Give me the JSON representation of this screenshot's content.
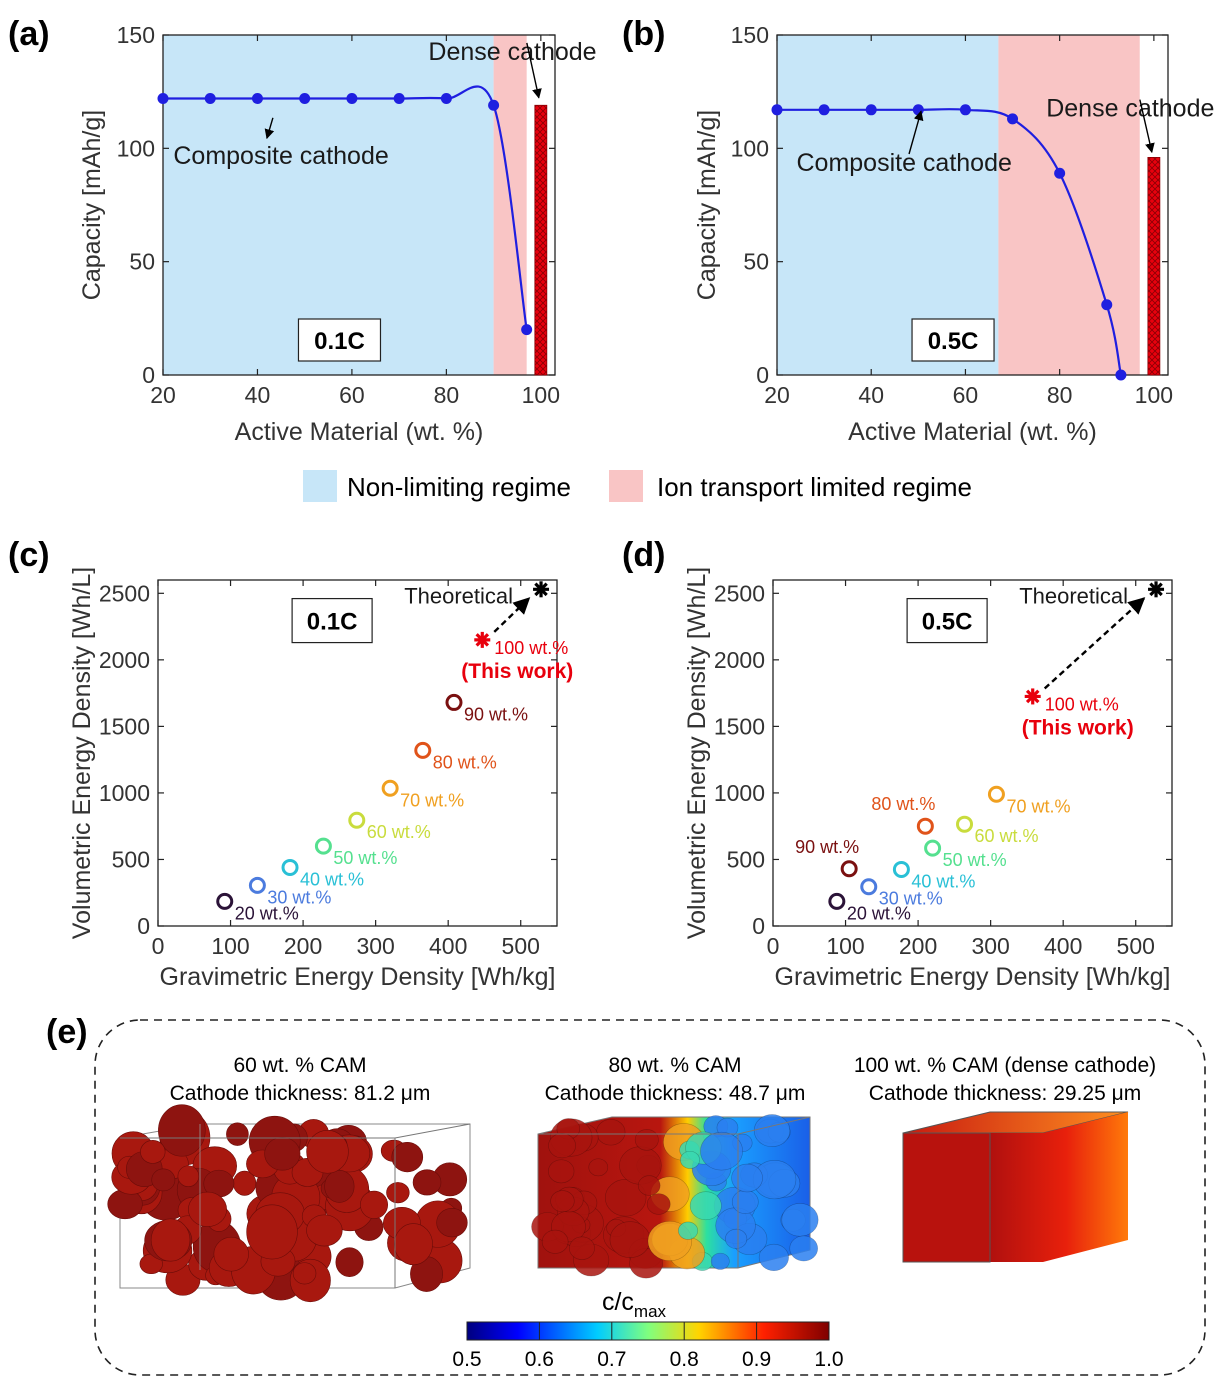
{
  "colors": {
    "blue_region": "#c7e6f8",
    "red_region": "#f9c5c5",
    "curve": "#1f1fe0",
    "bar": "#e8000d",
    "star_red": "#e8000d",
    "star_black": "#000000",
    "arrow": "#000000"
  },
  "legend": {
    "items": [
      {
        "label": "Non-limiting regime",
        "color": "#c7e6f8"
      },
      {
        "label": "Ion transport limited regime",
        "color": "#f9c5c5"
      }
    ]
  },
  "chart_data": [
    {
      "panel": "(a)",
      "type": "line",
      "xlabel": "Active Material (wt. %)",
      "ylabel": "Capacity [mAh/g]",
      "xlim": [
        20,
        103
      ],
      "ylim": [
        0,
        150
      ],
      "xticks": [
        20,
        40,
        60,
        80,
        100
      ],
      "yticks": [
        0,
        50,
        100,
        150
      ],
      "rate": "0.1C",
      "regions": [
        {
          "label": "Non-limiting regime",
          "from": 20,
          "to": 90
        },
        {
          "label": "Ion transport limited regime",
          "from": 90,
          "to": 97
        }
      ],
      "series": [
        {
          "points": [
            [
              20,
              122
            ],
            [
              30,
              122
            ],
            [
              40,
              122
            ],
            [
              50,
              122
            ],
            [
              60,
              122
            ],
            [
              70,
              122
            ],
            [
              80,
              122
            ],
            [
              90,
              119
            ],
            [
              97,
              20
            ]
          ]
        }
      ],
      "bar": {
        "x": 100,
        "value": 119
      },
      "annotations": [
        {
          "text": "Composite cathode",
          "tx": 45,
          "ty": 93,
          "ax": 42,
          "ay": 117
        },
        {
          "text": "Dense cathode",
          "tx": 94,
          "ty": 139,
          "ax": 100,
          "ay": 121
        }
      ]
    },
    {
      "panel": "(b)",
      "type": "line",
      "xlabel": "Active Material (wt. %)",
      "ylabel": "Capacity [mAh/g]",
      "xlim": [
        20,
        103
      ],
      "ylim": [
        0,
        150
      ],
      "xticks": [
        20,
        40,
        60,
        80,
        100
      ],
      "yticks": [
        0,
        50,
        100,
        150
      ],
      "rate": "0.5C",
      "regions": [
        {
          "label": "Non-limiting regime",
          "from": 20,
          "to": 67
        },
        {
          "label": "Ion transport limited regime",
          "from": 67,
          "to": 97
        }
      ],
      "series": [
        {
          "points": [
            [
              20,
              117
            ],
            [
              30,
              117
            ],
            [
              40,
              117
            ],
            [
              50,
              117
            ],
            [
              60,
              117
            ],
            [
              70,
              113
            ],
            [
              80,
              89
            ],
            [
              90,
              31
            ],
            [
              93,
              0
            ]
          ]
        }
      ],
      "bar": {
        "x": 100,
        "value": 96
      },
      "annotations": [
        {
          "text": "Composite cathode",
          "tx": 47,
          "ty": 90,
          "ax": 51,
          "ay": 115
        },
        {
          "text": "Dense cathode",
          "tx": 95,
          "ty": 114,
          "ax": 100,
          "ay": 97
        }
      ]
    },
    {
      "panel": "(c)",
      "type": "scatter",
      "xlabel": "Gravimetric Energy Density [Wh/kg]",
      "ylabel": "Volumetric Energy Density [Wh/L]",
      "xlim": [
        0,
        550
      ],
      "ylim": [
        0,
        2600
      ],
      "xticks": [
        0,
        100,
        200,
        300,
        400,
        500
      ],
      "yticks": [
        0,
        500,
        1000,
        1500,
        2000,
        2500
      ],
      "rate": "0.1C",
      "points": [
        {
          "label": "20 wt.%",
          "x": 92,
          "y": 185,
          "color": "#2b1338"
        },
        {
          "label": "30 wt.%",
          "x": 137,
          "y": 305,
          "color": "#4b7bde"
        },
        {
          "label": "40 wt.%",
          "x": 182,
          "y": 440,
          "color": "#29c0d6"
        },
        {
          "label": "50 wt.%",
          "x": 228,
          "y": 600,
          "color": "#55e08f"
        },
        {
          "label": "60 wt.%",
          "x": 274,
          "y": 795,
          "color": "#c9dc3d"
        },
        {
          "label": "70 wt.%",
          "x": 320,
          "y": 1035,
          "color": "#f0a020"
        },
        {
          "label": "80 wt.%",
          "x": 365,
          "y": 1320,
          "color": "#e0531a"
        },
        {
          "label": "90 wt.%",
          "x": 408,
          "y": 1680,
          "color": "#7a1010"
        }
      ],
      "this_work": {
        "label": "100 wt.%",
        "note": "(This work)",
        "x": 447,
        "y": 2150
      },
      "theoretical": {
        "label": "Theoretical",
        "x": 528,
        "y": 2530
      }
    },
    {
      "panel": "(d)",
      "type": "scatter",
      "xlabel": "Gravimetric Energy Density [Wh/kg]",
      "ylabel": "Volumetric Energy Density [Wh/L]",
      "xlim": [
        0,
        550
      ],
      "ylim": [
        0,
        2600
      ],
      "xticks": [
        0,
        100,
        200,
        300,
        400,
        500
      ],
      "yticks": [
        0,
        500,
        1000,
        1500,
        2000,
        2500
      ],
      "rate": "0.5C",
      "points": [
        {
          "label": "20 wt.%",
          "x": 88,
          "y": 185,
          "color": "#2b1338"
        },
        {
          "label": "30 wt.%",
          "x": 132,
          "y": 295,
          "color": "#4b7bde"
        },
        {
          "label": "40 wt.%",
          "x": 177,
          "y": 425,
          "color": "#29c0d6"
        },
        {
          "label": "50 wt.%",
          "x": 220,
          "y": 585,
          "color": "#55e08f"
        },
        {
          "label": "60 wt.%",
          "x": 264,
          "y": 765,
          "color": "#c9dc3d"
        },
        {
          "label": "70 wt.%",
          "x": 308,
          "y": 990,
          "color": "#f0a020"
        },
        {
          "label": "80 wt.%",
          "x": 210,
          "y": 750,
          "color": "#e0531a"
        },
        {
          "label": "90 wt.%",
          "x": 105,
          "y": 430,
          "color": "#7a1010"
        }
      ],
      "this_work": {
        "label": "100 wt.%",
        "note": "(This work)",
        "x": 358,
        "y": 1725
      },
      "theoretical": {
        "label": "Theoretical",
        "x": 528,
        "y": 2530
      }
    }
  ],
  "panel_e": {
    "label": "(e)",
    "cases": [
      {
        "title": "60 wt. % CAM",
        "thickness": "Cathode thickness: 81.2 μm"
      },
      {
        "title": "80 wt. % CAM",
        "thickness": "Cathode thickness: 48.7 μm"
      },
      {
        "title": "100 wt. % CAM (dense cathode)",
        "thickness": "Cathode thickness: 29.25 μm"
      }
    ],
    "colorbar": {
      "label_main": "c/c",
      "label_sub": "max",
      "ticks": [
        "0.5",
        "0.6",
        "0.7",
        "0.8",
        "0.9",
        "1.0"
      ]
    }
  }
}
